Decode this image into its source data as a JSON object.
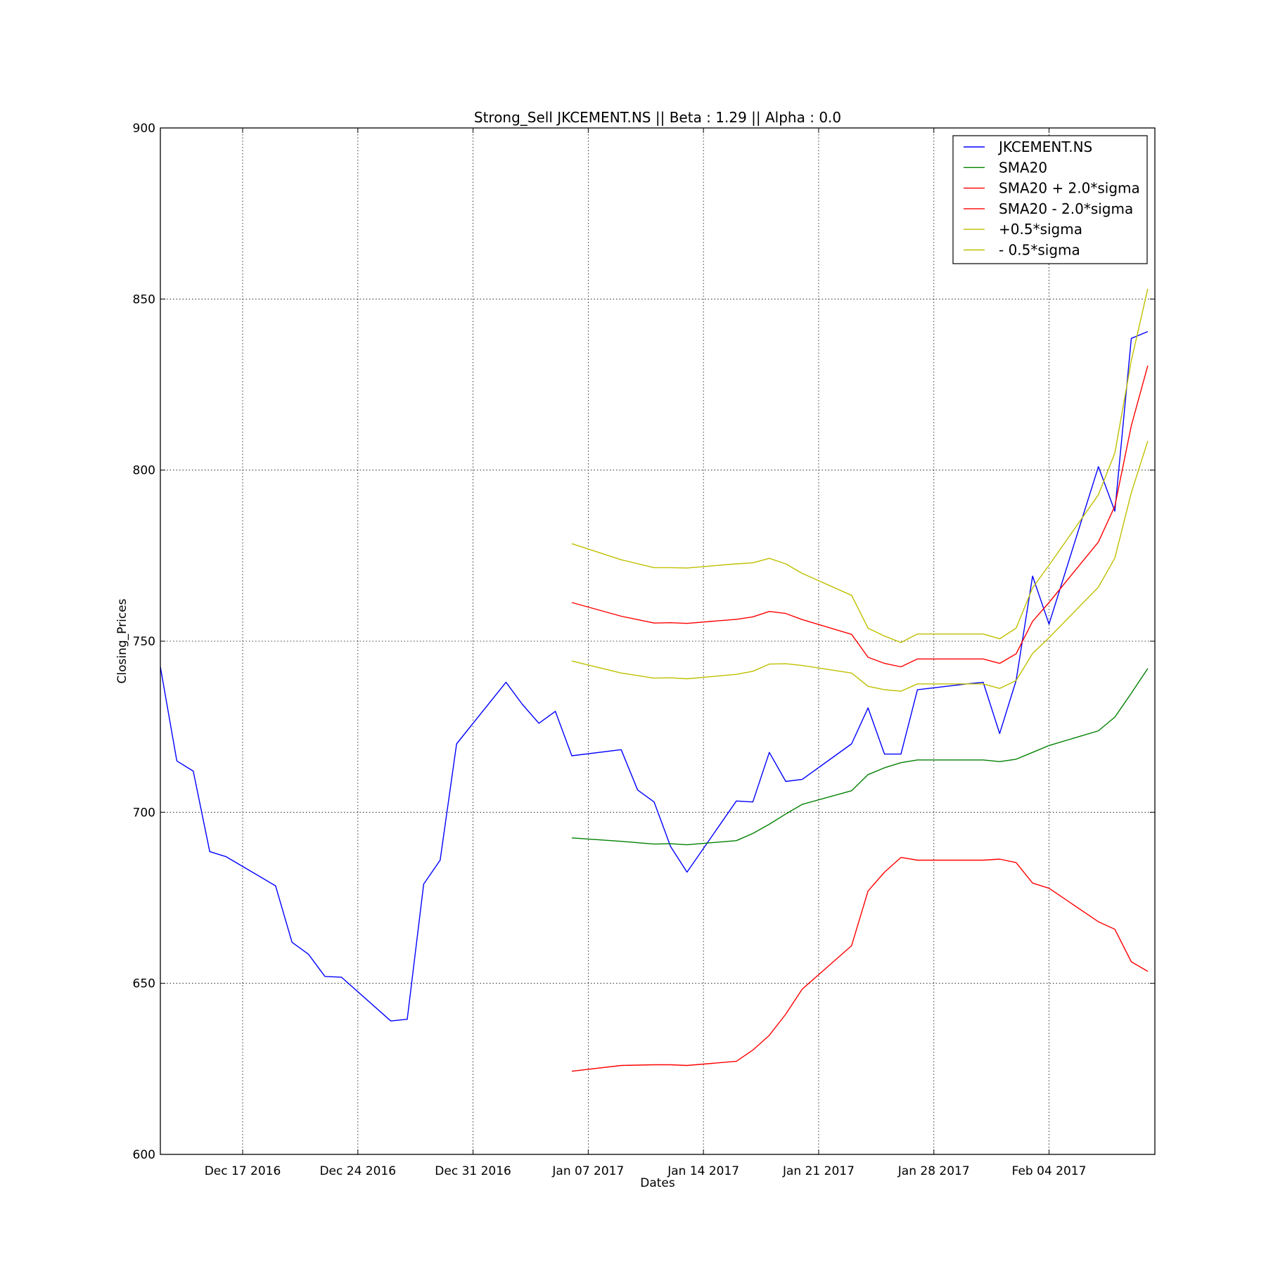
{
  "chart_data": {
    "type": "line",
    "title": "Strong_Sell JKCEMENT.NS || Beta : 1.29 || Alpha : 0.0",
    "xlabel": "Dates",
    "ylabel": "Closing_Prices",
    "xlim": [
      "2016-12-12",
      "2017-02-09"
    ],
    "ylim": [
      600,
      900
    ],
    "x_ticks": [
      "2016-12-17",
      "2016-12-24",
      "2016-12-31",
      "2017-01-07",
      "2017-01-14",
      "2017-01-21",
      "2017-01-28",
      "2017-02-04"
    ],
    "x_tick_labels": [
      "Dec 17 2016",
      "Dec 24 2016",
      "Dec 31 2016",
      "Jan 07 2017",
      "Jan 14 2017",
      "Jan 21 2017",
      "Jan 28 2017",
      "Feb 04 2017"
    ],
    "y_ticks": [
      600,
      650,
      700,
      750,
      800,
      850,
      900
    ],
    "grid": true,
    "legend_position": "top-right",
    "series": [
      {
        "name": "JKCEMENT.NS",
        "color": "#0000ff",
        "points": [
          [
            "2016-12-12",
            742.5
          ],
          [
            "2016-12-13",
            715.0
          ],
          [
            "2016-12-14",
            712.0
          ],
          [
            "2016-12-15",
            688.5
          ],
          [
            "2016-12-16",
            687.0
          ],
          [
            "2016-12-19",
            678.5
          ],
          [
            "2016-12-20",
            662.0
          ],
          [
            "2016-12-21",
            658.5
          ],
          [
            "2016-12-22",
            652.0
          ],
          [
            "2016-12-23",
            651.8
          ],
          [
            "2016-12-26",
            639.0
          ],
          [
            "2016-12-27",
            639.5
          ],
          [
            "2016-12-28",
            679.0
          ],
          [
            "2016-12-29",
            686.0
          ],
          [
            "2016-12-30",
            720.0
          ],
          [
            "2017-01-02",
            738.0
          ],
          [
            "2017-01-03",
            731.5
          ],
          [
            "2017-01-04",
            726.0
          ],
          [
            "2017-01-05",
            729.5
          ],
          [
            "2017-01-06",
            716.5
          ],
          [
            "2017-01-09",
            718.3
          ],
          [
            "2017-01-10",
            706.5
          ],
          [
            "2017-01-11",
            703.0
          ],
          [
            "2017-01-12",
            690.0
          ],
          [
            "2017-01-13",
            682.5
          ],
          [
            "2017-01-16",
            703.3
          ],
          [
            "2017-01-17",
            703.0
          ],
          [
            "2017-01-18",
            717.5
          ],
          [
            "2017-01-19",
            709.0
          ],
          [
            "2017-01-20",
            709.6
          ],
          [
            "2017-01-23",
            720.0
          ],
          [
            "2017-01-24",
            730.5
          ],
          [
            "2017-01-25",
            717.0
          ],
          [
            "2017-01-26",
            717.0
          ],
          [
            "2017-01-27",
            735.8
          ],
          [
            "2017-01-30",
            737.5
          ],
          [
            "2017-01-31",
            738.0
          ],
          [
            "2017-02-01",
            723.0
          ],
          [
            "2017-02-02",
            738.5
          ],
          [
            "2017-02-03",
            769.0
          ],
          [
            "2017-02-04",
            755.0
          ],
          [
            "2017-02-07",
            801.0
          ],
          [
            "2017-02-08",
            788.0
          ],
          [
            "2017-02-09",
            838.5
          ],
          [
            "2017-02-10",
            840.5
          ]
        ]
      },
      {
        "name": "SMA20",
        "color": "#008000",
        "points": [
          [
            "2017-01-06",
            692.5
          ],
          [
            "2017-01-09",
            691.5
          ],
          [
            "2017-01-11",
            690.7
          ],
          [
            "2017-01-12",
            690.8
          ],
          [
            "2017-01-13",
            690.5
          ],
          [
            "2017-01-16",
            691.7
          ],
          [
            "2017-01-17",
            693.8
          ],
          [
            "2017-01-18",
            696.5
          ],
          [
            "2017-01-19",
            699.5
          ],
          [
            "2017-01-20",
            702.3
          ],
          [
            "2017-01-23",
            706.3
          ],
          [
            "2017-01-24",
            711.0
          ],
          [
            "2017-01-25",
            713.0
          ],
          [
            "2017-01-26",
            714.5
          ],
          [
            "2017-01-27",
            715.3
          ],
          [
            "2017-01-30",
            715.3
          ],
          [
            "2017-01-31",
            715.3
          ],
          [
            "2017-02-01",
            714.8
          ],
          [
            "2017-02-02",
            715.5
          ],
          [
            "2017-02-03",
            717.5
          ],
          [
            "2017-02-04",
            719.5
          ],
          [
            "2017-02-07",
            723.8
          ],
          [
            "2017-02-08",
            727.8
          ],
          [
            "2017-02-09",
            734.8
          ],
          [
            "2017-02-10",
            742.0
          ]
        ]
      },
      {
        "name": "SMA20 + 2.0*sigma",
        "color": "#ff0000",
        "points": [
          [
            "2017-01-06",
            761.3
          ],
          [
            "2017-01-09",
            757.3
          ],
          [
            "2017-01-11",
            755.3
          ],
          [
            "2017-01-12",
            755.4
          ],
          [
            "2017-01-13",
            755.2
          ],
          [
            "2017-01-16",
            756.4
          ],
          [
            "2017-01-17",
            757.1
          ],
          [
            "2017-01-18",
            758.7
          ],
          [
            "2017-01-19",
            758.1
          ],
          [
            "2017-01-20",
            756.3
          ],
          [
            "2017-01-23",
            752.0
          ],
          [
            "2017-01-24",
            745.3
          ],
          [
            "2017-01-25",
            743.5
          ],
          [
            "2017-01-26",
            742.5
          ],
          [
            "2017-01-27",
            744.8
          ],
          [
            "2017-01-30",
            744.8
          ],
          [
            "2017-01-31",
            744.8
          ],
          [
            "2017-02-01",
            743.5
          ],
          [
            "2017-02-02",
            746.3
          ],
          [
            "2017-02-03",
            755.8
          ],
          [
            "2017-02-04",
            761.3
          ],
          [
            "2017-02-07",
            779.0
          ],
          [
            "2017-02-08",
            789.5
          ],
          [
            "2017-02-09",
            813.0
          ],
          [
            "2017-02-10",
            830.5
          ]
        ]
      },
      {
        "name": "SMA20 -  2.0*sigma",
        "color": "#ff0000",
        "points": [
          [
            "2017-01-06",
            624.3
          ],
          [
            "2017-01-09",
            626.0
          ],
          [
            "2017-01-11",
            626.2
          ],
          [
            "2017-01-12",
            626.2
          ],
          [
            "2017-01-13",
            626.0
          ],
          [
            "2017-01-16",
            627.2
          ],
          [
            "2017-01-17",
            630.5
          ],
          [
            "2017-01-18",
            634.8
          ],
          [
            "2017-01-19",
            641.0
          ],
          [
            "2017-01-20",
            648.3
          ],
          [
            "2017-01-23",
            661.0
          ],
          [
            "2017-01-24",
            677.0
          ],
          [
            "2017-01-25",
            682.5
          ],
          [
            "2017-01-26",
            686.8
          ],
          [
            "2017-01-27",
            686.0
          ],
          [
            "2017-01-30",
            686.0
          ],
          [
            "2017-01-31",
            686.0
          ],
          [
            "2017-02-01",
            686.3
          ],
          [
            "2017-02-02",
            685.3
          ],
          [
            "2017-02-03",
            679.3
          ],
          [
            "2017-02-04",
            677.8
          ],
          [
            "2017-02-07",
            668.0
          ],
          [
            "2017-02-08",
            665.8
          ],
          [
            "2017-02-09",
            656.3
          ],
          [
            "2017-02-10",
            653.5
          ]
        ]
      },
      {
        "name": "+0.5*sigma",
        "color": "#bfbf00",
        "points": [
          [
            "2017-01-06",
            778.5
          ],
          [
            "2017-01-09",
            773.8
          ],
          [
            "2017-01-11",
            771.5
          ],
          [
            "2017-01-12",
            771.5
          ],
          [
            "2017-01-13",
            771.4
          ],
          [
            "2017-01-16",
            772.6
          ],
          [
            "2017-01-17",
            772.9
          ],
          [
            "2017-01-18",
            774.2
          ],
          [
            "2017-01-19",
            772.6
          ],
          [
            "2017-01-20",
            769.8
          ],
          [
            "2017-01-23",
            763.4
          ],
          [
            "2017-01-24",
            753.8
          ],
          [
            "2017-01-25",
            751.5
          ],
          [
            "2017-01-26",
            749.6
          ],
          [
            "2017-01-27",
            752.1
          ],
          [
            "2017-01-30",
            752.1
          ],
          [
            "2017-01-31",
            752.1
          ],
          [
            "2017-02-01",
            750.7
          ],
          [
            "2017-02-02",
            753.8
          ],
          [
            "2017-02-03",
            765.6
          ],
          [
            "2017-02-04",
            772.2
          ],
          [
            "2017-02-07",
            792.8
          ],
          [
            "2017-02-08",
            805.0
          ],
          [
            "2017-02-09",
            832.0
          ],
          [
            "2017-02-10",
            853.0
          ]
        ]
      },
      {
        "name": "- 0.5*sigma",
        "color": "#bfbf00",
        "points": [
          [
            "2017-01-06",
            744.2
          ],
          [
            "2017-01-09",
            740.7
          ],
          [
            "2017-01-11",
            739.2
          ],
          [
            "2017-01-12",
            739.3
          ],
          [
            "2017-01-13",
            739.0
          ],
          [
            "2017-01-16",
            740.3
          ],
          [
            "2017-01-17",
            741.2
          ],
          [
            "2017-01-18",
            743.3
          ],
          [
            "2017-01-19",
            743.4
          ],
          [
            "2017-01-20",
            742.9
          ],
          [
            "2017-01-23",
            740.7
          ],
          [
            "2017-01-24",
            736.8
          ],
          [
            "2017-01-25",
            735.8
          ],
          [
            "2017-01-26",
            735.4
          ],
          [
            "2017-01-27",
            737.5
          ],
          [
            "2017-01-30",
            737.5
          ],
          [
            "2017-01-31",
            737.5
          ],
          [
            "2017-02-01",
            736.2
          ],
          [
            "2017-02-02",
            738.5
          ],
          [
            "2017-02-03",
            746.4
          ],
          [
            "2017-02-04",
            751.0
          ],
          [
            "2017-02-07",
            765.8
          ],
          [
            "2017-02-08",
            774.3
          ],
          [
            "2017-02-09",
            793.4
          ],
          [
            "2017-02-10",
            808.5
          ]
        ]
      }
    ]
  }
}
